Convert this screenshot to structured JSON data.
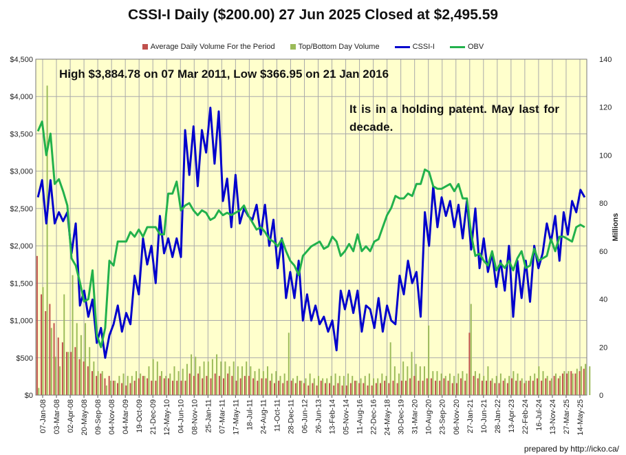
{
  "title": "CSSI-I Daily ($200.00) 27 Jun 2025 Closed at $2,495.59",
  "legend": {
    "avg_volume": "Average Daily Volume For the Period",
    "topbottom_volume": "Top/Bottom Day Volume",
    "price": "CSSI-I",
    "obv": "OBV"
  },
  "annotations": {
    "high_low": "High $3,884.78 on 07 Mar 2011, Low $366.95 on 21 Jan 2016",
    "comment": "It is in a holding patent. May last for decade."
  },
  "y_right_label": "Millions",
  "footer": "prepared by http://icko.ca/",
  "colors": {
    "plot_bg": "#ffffcc",
    "grid": "#a9a9a9",
    "avg_volume": "#c0504d",
    "topbottom_volume": "#9bbb59",
    "price": "#0000cc",
    "obv": "#22b14c"
  },
  "chart_data": {
    "type": "line",
    "y_left": {
      "min": 0,
      "max": 4500,
      "ticks": [
        "$0",
        "$500",
        "$1,000",
        "$1,500",
        "$2,000",
        "$2,500",
        "$3,000",
        "$3,500",
        "$4,000",
        "$4,500"
      ]
    },
    "y_right": {
      "min": 0,
      "max": 140,
      "ticks": [
        "0",
        "20",
        "40",
        "60",
        "80",
        "100",
        "120",
        "140"
      ]
    },
    "x_labels": [
      "07-Jan-08",
      "03-Mar-08",
      "02-Apr-08",
      "20-May-08",
      "09-Sep-08",
      "04-Nov-08",
      "04-Mar-09",
      "19-Oct-09",
      "21-Dec-09",
      "12-May-10",
      "04-Jun-10",
      "08-Nov-10",
      "25-Jan-11",
      "07-Mar-11",
      "17-May-11",
      "18-Jul-11",
      "24-Aug-11",
      "11-Oct-11",
      "28-Dec-11",
      "06-Jun-12",
      "26-Jun-13",
      "13-Feb-14",
      "05-Nov-14",
      "11-Aug-16",
      "22-Dec-16",
      "24-May-18",
      "30-Dec-19",
      "31-Mar-20",
      "10-Aug-20",
      "23-Sep-20",
      "06-Nov-20",
      "27-Jan-21",
      "10-Jun-21",
      "28-Jan-22",
      "13-Apr-23",
      "22-Feb-24",
      "16-Jul-24",
      "13-Nov-24",
      "27-Mar-25",
      "14-May-25"
    ],
    "series": [
      {
        "name": "CSSI-I",
        "axis": "left",
        "values": [
          2650,
          2880,
          2300,
          2880,
          2300,
          2450,
          2330,
          2450,
          1900,
          2300,
          1200,
          1400,
          1050,
          1280,
          700,
          900,
          500,
          800,
          950,
          1200,
          850,
          1100,
          950,
          1600,
          1350,
          2100,
          1750,
          2000,
          1500,
          2400,
          1900,
          2100,
          1850,
          2100,
          1850,
          3550,
          2950,
          3600,
          2800,
          3550,
          3250,
          3850,
          3100,
          3800,
          2600,
          2900,
          2250,
          2950,
          2300,
          2500,
          2400,
          2350,
          2550,
          2150,
          2550,
          2000,
          2350,
          1700,
          2100,
          1300,
          1650,
          1300,
          1800,
          1000,
          1350,
          1000,
          1200,
          950,
          1050,
          850,
          1000,
          600,
          1400,
          1150,
          1400,
          1100,
          1400,
          850,
          1200,
          1150,
          900,
          1300,
          850,
          1200,
          1000,
          950,
          1600,
          1350,
          1800,
          1500,
          1650,
          1050,
          2450,
          2000,
          2800,
          2250,
          2650,
          2400,
          2600,
          2250,
          2550,
          2100,
          2600,
          1950,
          2500,
          1700,
          2100,
          1650,
          1900,
          1450,
          1800,
          1400,
          2000,
          1050,
          1800,
          1300,
          1800,
          1250,
          2000,
          1700,
          1900,
          2300,
          2050,
          2400,
          1800,
          2450,
          2150,
          2600,
          2450,
          2750,
          2650
        ]
      },
      {
        "name": "OBV",
        "axis": "right",
        "values": [
          110,
          114,
          100,
          109,
          88,
          90,
          85,
          79,
          57,
          54,
          47,
          39,
          40,
          52,
          25,
          20,
          28,
          56,
          54,
          64,
          64,
          64,
          68,
          66,
          69,
          66,
          70,
          70,
          70,
          67,
          67,
          84,
          84,
          89,
          77,
          79,
          80,
          77,
          75,
          77,
          76,
          73,
          74,
          77,
          75,
          76,
          75,
          76,
          77,
          79,
          75,
          72,
          69,
          70,
          68,
          65,
          64,
          62,
          65,
          60,
          56,
          54,
          50,
          58,
          60,
          62,
          63,
          64,
          61,
          62,
          66,
          64,
          58,
          60,
          63,
          60,
          67,
          60,
          62,
          60,
          64,
          65,
          70,
          75,
          78,
          83,
          82,
          82,
          84,
          83,
          88,
          88,
          94,
          93,
          87,
          86,
          86,
          87,
          88,
          85,
          88,
          82,
          82,
          67,
          58,
          59,
          56,
          54,
          60,
          52,
          55,
          53,
          56,
          52,
          57,
          60,
          53,
          54,
          61,
          56,
          57,
          58,
          65,
          60,
          66,
          66,
          65,
          64,
          70,
          71,
          70
        ]
      }
    ],
    "bars": [
      {
        "name": "Average Daily Volume For the Period",
        "axis": "right",
        "values": [
          58,
          42,
          35,
          38,
          30,
          24,
          22,
          18,
          18,
          20,
          15,
          14,
          12,
          10,
          8,
          9,
          7,
          8,
          6,
          5,
          5,
          4,
          5,
          6,
          7,
          8,
          7,
          6,
          6,
          8,
          7,
          7,
          6,
          6,
          6,
          6,
          9,
          8,
          9,
          7,
          8,
          7,
          9,
          8,
          7,
          9,
          8,
          6,
          7,
          8,
          8,
          7,
          6,
          7,
          7,
          6,
          5,
          6,
          5,
          6,
          6,
          5,
          6,
          5,
          4,
          5,
          4,
          6,
          5,
          5,
          4,
          5,
          4,
          4,
          5,
          6,
          5,
          5,
          4,
          4,
          5,
          5,
          6,
          5,
          6,
          5,
          6,
          6,
          7,
          8,
          6,
          6,
          7,
          7,
          6,
          6,
          7,
          6,
          5,
          5,
          7,
          6,
          26,
          8,
          7,
          6,
          6,
          6,
          5,
          5,
          6,
          5,
          7,
          6,
          6,
          5,
          6,
          6,
          7,
          6,
          7,
          6,
          8,
          7,
          9,
          9,
          10,
          9,
          10,
          11
        ]
      },
      {
        "name": "Top/Bottom Day Volume",
        "axis": "right",
        "values": [
          3,
          45,
          129,
          28,
          16,
          12,
          42,
          18,
          50,
          30,
          25,
          30,
          20,
          14,
          10,
          10,
          4,
          6,
          6,
          8,
          9,
          8,
          8,
          10,
          9,
          8,
          12,
          15,
          14,
          10,
          8,
          9,
          12,
          10,
          11,
          13,
          17,
          16,
          12,
          14,
          14,
          15,
          17,
          14,
          14,
          12,
          14,
          12,
          12,
          14,
          12,
          10,
          11,
          10,
          12,
          9,
          10,
          8,
          9,
          26,
          7,
          8,
          6,
          7,
          9,
          7,
          8,
          7,
          7,
          8,
          9,
          8,
          8,
          9,
          8,
          6,
          7,
          8,
          9,
          7,
          7,
          9,
          8,
          22,
          12,
          9,
          14,
          12,
          18,
          13,
          12,
          12,
          29,
          10,
          10,
          9,
          8,
          9,
          8,
          9,
          10,
          9,
          38,
          10,
          9,
          8,
          12,
          7,
          8,
          9,
          7,
          8,
          10,
          9,
          7,
          6,
          8,
          9,
          12,
          10,
          8,
          7,
          9,
          8,
          10,
          10,
          9,
          11,
          12,
          13,
          12
        ]
      }
    ]
  }
}
